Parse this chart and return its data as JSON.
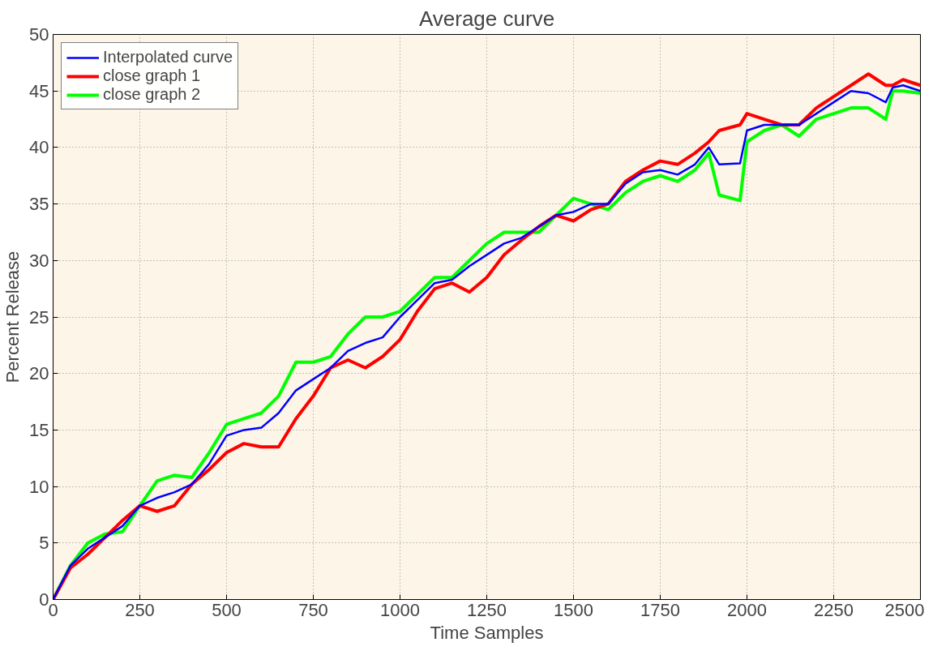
{
  "chart_data": {
    "type": "line",
    "title": "Average curve",
    "xlabel": "Time Samples",
    "ylabel": "Percent Release",
    "x": [
      0,
      50,
      100,
      150,
      200,
      250,
      300,
      350,
      400,
      450,
      500,
      550,
      600,
      650,
      700,
      750,
      800,
      850,
      900,
      950,
      1000,
      1050,
      1100,
      1150,
      1200,
      1250,
      1300,
      1350,
      1400,
      1450,
      1500,
      1550,
      1600,
      1650,
      1700,
      1750,
      1800,
      1850,
      1890,
      1920,
      1980,
      2000,
      2050,
      2100,
      2150,
      2200,
      2250,
      2300,
      2350,
      2400,
      2420,
      2450,
      2500
    ],
    "series": [
      {
        "name": "Interpolated curve",
        "color": "#0000ff",
        "values": [
          0,
          3,
          4.5,
          5.5,
          6.5,
          8.3,
          9,
          9.5,
          10.2,
          12,
          14.5,
          15,
          15.2,
          16.5,
          18.5,
          19.5,
          20.5,
          22,
          22.7,
          23.2,
          25,
          26.5,
          28,
          28.3,
          29.5,
          30.5,
          31.5,
          32,
          33,
          34,
          34.3,
          35,
          35,
          36.8,
          37.8,
          38,
          37.6,
          38.5,
          40,
          38.5,
          38.6,
          41.5,
          42,
          42,
          42,
          43,
          44,
          45,
          44.8,
          44,
          45.3,
          45.5,
          45
        ]
      },
      {
        "name": "close graph 1",
        "color": "#ff0000",
        "values": [
          0,
          2.8,
          4,
          5.5,
          7,
          8.3,
          7.8,
          8.3,
          10.2,
          11.5,
          13,
          13.8,
          13.5,
          13.5,
          16,
          18,
          20.5,
          21.2,
          20.5,
          21.5,
          23,
          25.5,
          27.5,
          28,
          27.2,
          28.5,
          30.5,
          31.8,
          33,
          34,
          33.5,
          34.5,
          35,
          37,
          38,
          38.8,
          38.5,
          39.5,
          40.5,
          41.5,
          42,
          43,
          42.5,
          42,
          42,
          43.5,
          44.5,
          45.5,
          46.5,
          45.5,
          45.5,
          46,
          45.5
        ]
      },
      {
        "name": "close graph 2",
        "color": "#00ff00",
        "values": [
          0,
          3,
          5,
          5.8,
          6,
          8.3,
          10.5,
          11,
          10.8,
          13,
          15.5,
          16,
          16.5,
          18,
          21,
          21,
          21.5,
          23.5,
          25,
          25,
          25.5,
          27,
          28.5,
          28.5,
          30,
          31.5,
          32.5,
          32.5,
          32.5,
          34,
          35.5,
          35,
          34.5,
          36,
          37,
          37.5,
          37,
          38,
          39.5,
          35.8,
          35.3,
          40.5,
          41.5,
          42,
          41,
          42.5,
          43,
          43.5,
          43.5,
          42.5,
          45,
          45,
          44.8
        ]
      }
    ],
    "xlim": [
      0,
      2500
    ],
    "xticks": [
      0,
      250,
      500,
      750,
      1000,
      1250,
      1500,
      1750,
      2000,
      2250,
      2500
    ],
    "ylim": [
      0,
      50
    ],
    "yticks": [
      0,
      5,
      10,
      15,
      20,
      25,
      30,
      35,
      40,
      45,
      50
    ],
    "grid": true,
    "legend": "top left",
    "line_style": "solid",
    "marker": "none"
  }
}
